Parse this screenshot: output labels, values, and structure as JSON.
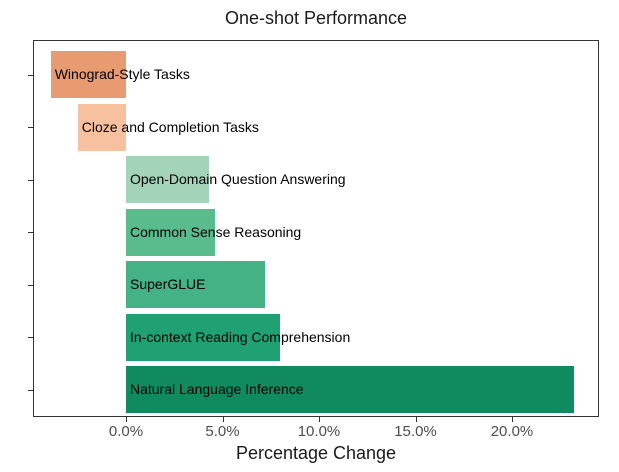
{
  "title": "One-shot Performance",
  "x_axis_title": "Percentage Change",
  "chart_data": {
    "type": "bar",
    "orientation": "horizontal",
    "title": "One-shot Performance",
    "xlabel": "Percentage Change",
    "ylabel": "",
    "xlim": [
      -4.8,
      24.5
    ],
    "grid": false,
    "legend": false,
    "x_ticks": [
      {
        "value": 0,
        "label": "0.0%"
      },
      {
        "value": 5,
        "label": "5.0%"
      },
      {
        "value": 10,
        "label": "10.0%"
      },
      {
        "value": 15,
        "label": "15.0%"
      },
      {
        "value": 20,
        "label": "20.0%"
      }
    ],
    "categories": [
      "Winograd-Style Tasks",
      "Cloze and Completion Tasks",
      "Open-Domain Question Answering",
      "Common Sense Reasoning",
      "SuperGLUE",
      "In-context Reading Comprehension",
      "Natural Language Inference"
    ],
    "values": [
      -3.9,
      -2.5,
      4.3,
      4.6,
      7.2,
      8.0,
      23.2
    ],
    "bar_colors": [
      "#E89A70",
      "#F7C09E",
      "#A4D4B8",
      "#5ABB8D",
      "#44B284",
      "#1FA173",
      "#108B60"
    ],
    "label_position": "start-of-bar-inside",
    "label_color": "#000000"
  }
}
